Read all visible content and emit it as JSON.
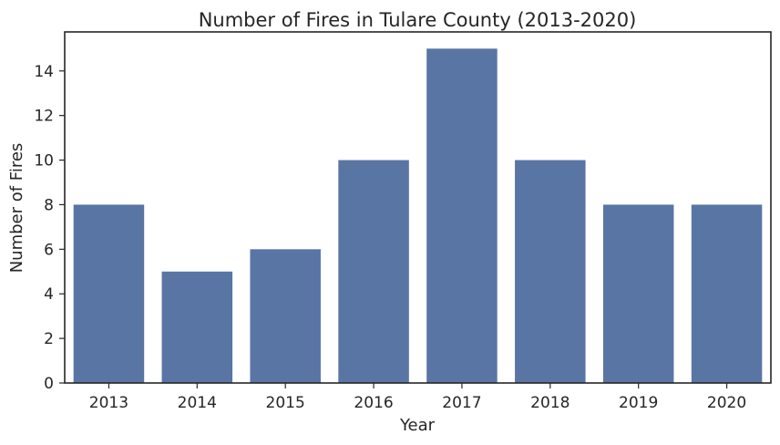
{
  "colors": {
    "bar": "#5975a4",
    "text": "#262626",
    "background": "#ffffff"
  },
  "chart_data": {
    "type": "bar",
    "title": "Number of Fires in Tulare County (2013-2020)",
    "xlabel": "Year",
    "ylabel": "Number of Fires",
    "categories": [
      "2013",
      "2014",
      "2015",
      "2016",
      "2017",
      "2018",
      "2019",
      "2020"
    ],
    "values": [
      8,
      5,
      6,
      10,
      15,
      10,
      8,
      8
    ],
    "ylim": [
      0,
      15.75
    ],
    "yticks": [
      0,
      2,
      4,
      6,
      8,
      10,
      12,
      14
    ],
    "grid": false,
    "legend": "none"
  }
}
